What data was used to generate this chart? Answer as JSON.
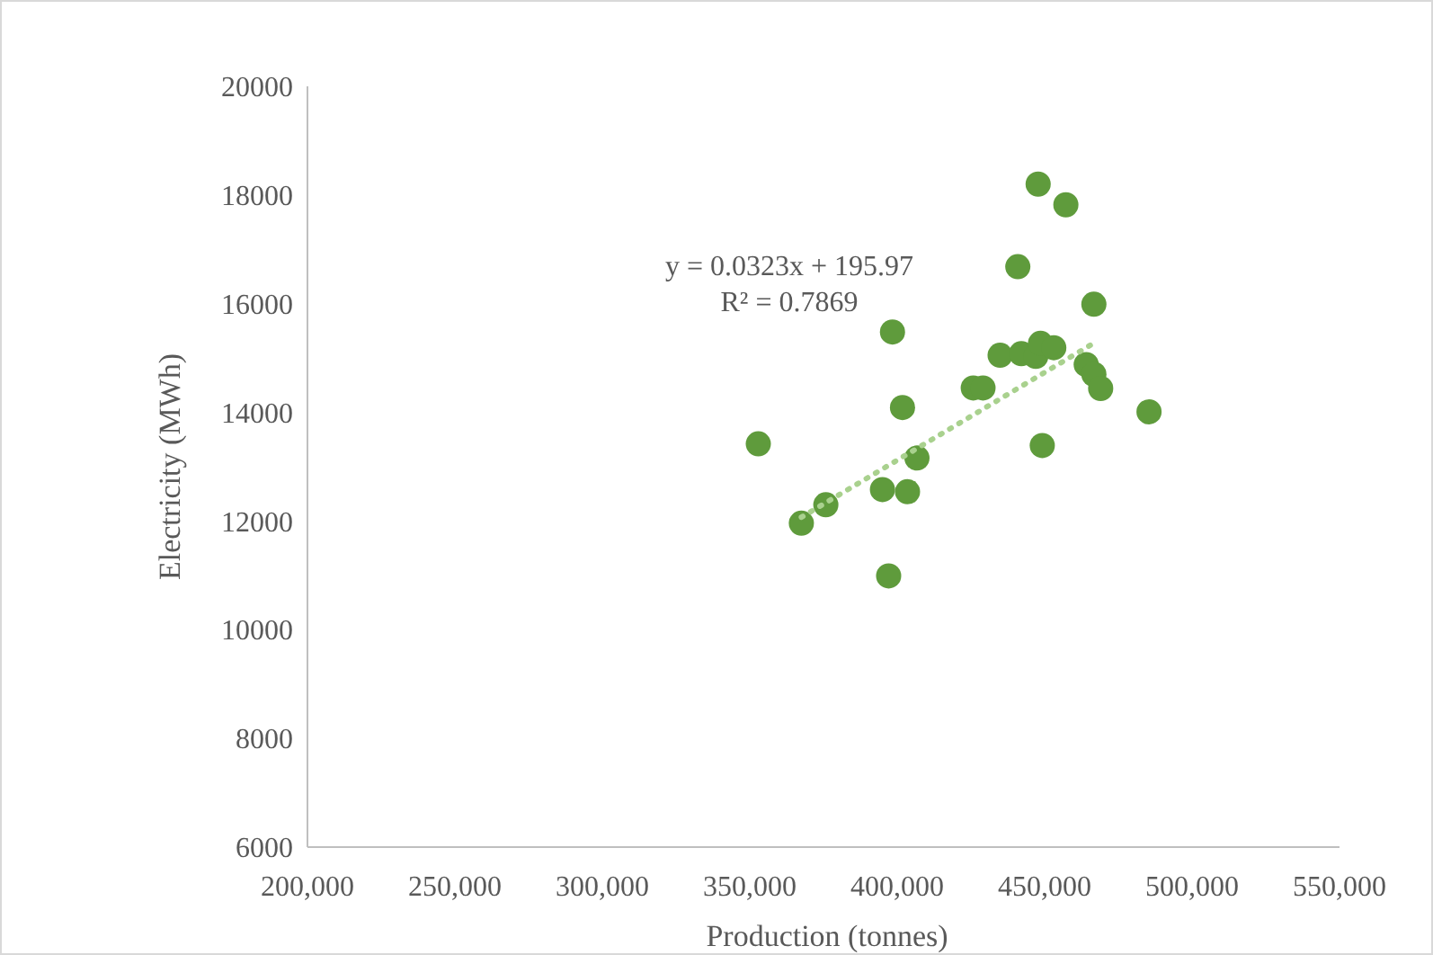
{
  "chart_data": {
    "type": "scatter",
    "xlabel": "Production (tonnes)",
    "ylabel": "Electricity (MWh)",
    "annotations": [
      "y = 0.0323x + 195.97",
      "R² = 0.7869"
    ],
    "xlim": [
      200000,
      550000
    ],
    "xticks": [
      {
        "value": 200000,
        "label": "200,000"
      },
      {
        "value": 250000,
        "label": "250,000"
      },
      {
        "value": 300000,
        "label": "300,000"
      },
      {
        "value": 350000,
        "label": "350,000"
      },
      {
        "value": 400000,
        "label": "400,000"
      },
      {
        "value": 450000,
        "label": "450,000"
      },
      {
        "value": 500000,
        "label": "500,000"
      },
      {
        "value": 550000,
        "label": "550,000"
      }
    ],
    "ylim": [
      6000,
      20000
    ],
    "yticks": [
      6000,
      8000,
      10000,
      12000,
      14000,
      16000,
      18000,
      20000
    ],
    "grid": false,
    "marker": "circle",
    "series": [
      {
        "color": "#5f9b3c",
        "x": [
          447800,
          457200,
          440900,
          466700,
          398400,
          434900,
          442100,
          447000,
          448600,
          453100,
          464100,
          466700,
          469000,
          425800,
          429100,
          485400,
          401800,
          449200,
          352900,
          406700,
          395000,
          403500,
          375800,
          367500,
          397100
        ],
        "values": [
          18200,
          17820,
          16680,
          15990,
          15480,
          15050,
          15080,
          15030,
          15270,
          15190,
          14880,
          14700,
          14440,
          14450,
          14450,
          14010,
          14090,
          13390,
          13420,
          13160,
          12580,
          12540,
          12300,
          11960,
          10990
        ]
      },
      {
        "type": "line",
        "color": "#a9d18e",
        "line_style": "dotted",
        "marker": "none",
        "x": [
          367500,
          468100
        ],
        "values": [
          12070,
          15320
        ]
      }
    ]
  }
}
